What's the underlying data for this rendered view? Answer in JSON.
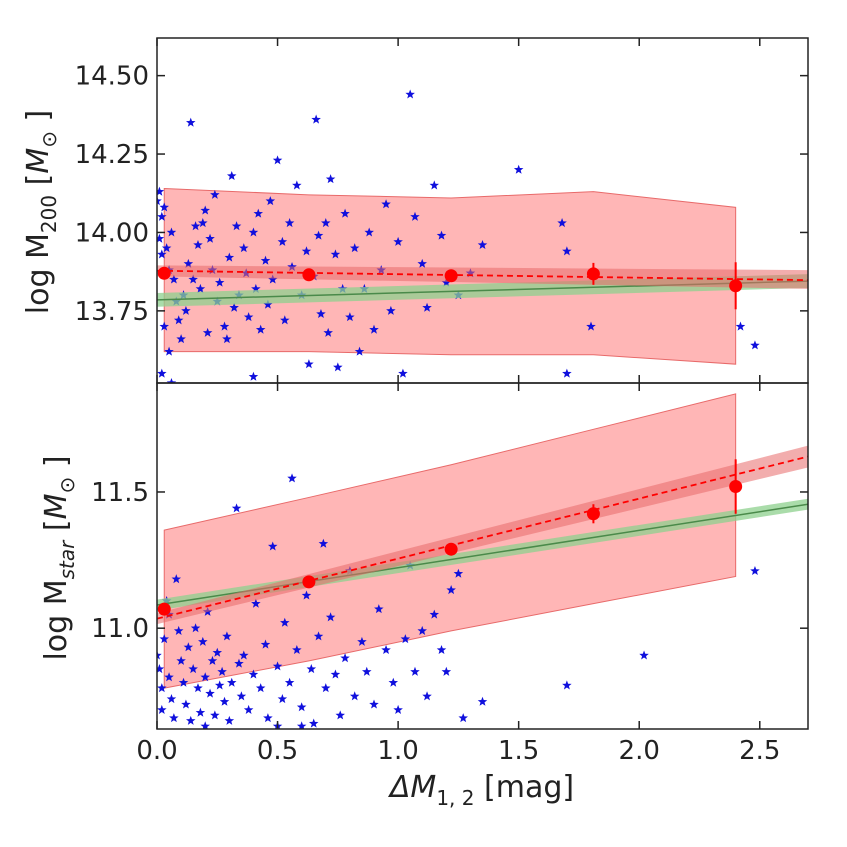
{
  "chart_data": [
    {
      "type": "scatter",
      "panel": "top",
      "ylabel": {
        "prefix": "log M",
        "sub": "200",
        "unit_open": " [",
        "unit_var": "M",
        "unit_sub": "⊙",
        "unit_close": " ]"
      },
      "xlim": [
        0.0,
        2.7
      ],
      "ylim": [
        13.52,
        14.62
      ],
      "xticks": [
        0.0,
        0.5,
        1.0,
        1.5,
        2.0,
        2.5
      ],
      "yticks": [
        13.75,
        14.0,
        14.25,
        14.5
      ],
      "ytick_labels": [
        "13.75",
        "14.00",
        "14.25",
        "14.50"
      ],
      "scatter_points": [
        [
          0.0,
          14.1
        ],
        [
          0.01,
          14.13
        ],
        [
          0.02,
          14.05
        ],
        [
          0.01,
          13.98
        ],
        [
          0.02,
          13.93
        ],
        [
          0.03,
          14.08
        ],
        [
          0.04,
          13.95
        ],
        [
          0.05,
          13.88
        ],
        [
          0.06,
          14.0
        ],
        [
          0.03,
          13.7
        ],
        [
          0.07,
          13.85
        ],
        [
          0.08,
          13.78
        ],
        [
          0.05,
          13.62
        ],
        [
          0.09,
          13.72
        ],
        [
          0.1,
          13.66
        ],
        [
          0.11,
          13.8
        ],
        [
          0.12,
          13.75
        ],
        [
          0.13,
          13.9
        ],
        [
          0.14,
          14.35
        ],
        [
          0.15,
          13.85
        ],
        [
          0.16,
          14.02
        ],
        [
          0.17,
          13.96
        ],
        [
          0.18,
          13.82
        ],
        [
          0.19,
          14.03
        ],
        [
          0.2,
          14.07
        ],
        [
          0.21,
          13.68
        ],
        [
          0.22,
          13.98
        ],
        [
          0.23,
          13.88
        ],
        [
          0.24,
          14.12
        ],
        [
          0.25,
          13.78
        ],
        [
          0.26,
          13.84
        ],
        [
          0.28,
          13.7
        ],
        [
          0.29,
          13.66
        ],
        [
          0.3,
          13.92
        ],
        [
          0.31,
          14.18
        ],
        [
          0.32,
          13.76
        ],
        [
          0.33,
          14.02
        ],
        [
          0.34,
          13.8
        ],
        [
          0.36,
          13.95
        ],
        [
          0.37,
          13.87
        ],
        [
          0.38,
          13.73
        ],
        [
          0.4,
          14.0
        ],
        [
          0.41,
          13.82
        ],
        [
          0.42,
          14.06
        ],
        [
          0.43,
          13.69
        ],
        [
          0.45,
          13.91
        ],
        [
          0.46,
          13.77
        ],
        [
          0.47,
          14.1
        ],
        [
          0.48,
          13.85
        ],
        [
          0.5,
          14.23
        ],
        [
          0.52,
          13.97
        ],
        [
          0.53,
          13.72
        ],
        [
          0.55,
          14.03
        ],
        [
          0.56,
          13.89
        ],
        [
          0.58,
          14.15
        ],
        [
          0.6,
          13.8
        ],
        [
          0.62,
          13.94
        ],
        [
          0.63,
          13.58
        ],
        [
          0.65,
          13.86
        ],
        [
          0.66,
          14.36
        ],
        [
          0.67,
          13.99
        ],
        [
          0.68,
          13.74
        ],
        [
          0.7,
          14.03
        ],
        [
          0.71,
          13.68
        ],
        [
          0.72,
          14.17
        ],
        [
          0.74,
          13.93
        ],
        [
          0.75,
          13.57
        ],
        [
          0.77,
          13.82
        ],
        [
          0.78,
          14.06
        ],
        [
          0.8,
          13.73
        ],
        [
          0.82,
          13.95
        ],
        [
          0.84,
          13.62
        ],
        [
          0.86,
          13.82
        ],
        [
          0.88,
          14.0
        ],
        [
          0.9,
          13.69
        ],
        [
          0.93,
          13.88
        ],
        [
          0.95,
          14.09
        ],
        [
          0.97,
          13.75
        ],
        [
          1.0,
          13.97
        ],
        [
          1.02,
          13.55
        ],
        [
          1.05,
          14.44
        ],
        [
          1.07,
          14.05
        ],
        [
          1.1,
          13.9
        ],
        [
          1.12,
          13.76
        ],
        [
          1.15,
          14.15
        ],
        [
          1.18,
          13.99
        ],
        [
          1.2,
          13.84
        ],
        [
          1.25,
          13.8
        ],
        [
          1.3,
          13.87
        ],
        [
          1.35,
          13.96
        ],
        [
          1.5,
          14.2
        ],
        [
          1.68,
          14.03
        ],
        [
          1.7,
          13.94
        ],
        [
          1.8,
          13.7
        ],
        [
          2.42,
          13.7
        ],
        [
          2.48,
          13.64
        ],
        [
          0.02,
          13.55
        ],
        [
          0.06,
          13.52
        ],
        [
          0.4,
          13.54
        ],
        [
          1.7,
          13.55
        ]
      ],
      "bins": {
        "x": [
          0.03,
          0.63,
          1.22,
          1.81,
          2.4
        ],
        "y": [
          13.87,
          13.865,
          13.862,
          13.868,
          13.83
        ],
        "yerr": [
          0.018,
          0.015,
          0.02,
          0.035,
          0.075
        ],
        "scatter_lo": [
          13.62,
          13.62,
          13.61,
          13.61,
          13.58
        ],
        "scatter_hi": [
          14.14,
          14.12,
          14.11,
          14.13,
          14.08
        ]
      },
      "fit": {
        "x0": 0.0,
        "y0": 13.878,
        "x1": 2.7,
        "y1": 13.848
      },
      "fit_band": {
        "lo0": 13.86,
        "hi0": 13.895,
        "lo1": 13.82,
        "hi1": 13.88
      },
      "reference": {
        "x0": 0.0,
        "y0": 13.785,
        "x1": 2.7,
        "y1": 13.845,
        "halfwidth": 0.022
      }
    },
    {
      "type": "scatter",
      "panel": "bottom",
      "ylabel": {
        "prefix": "log M",
        "sub": "star",
        "unit_open": " [",
        "unit_var": "M",
        "unit_sub": "⊙",
        "unit_close": " ]"
      },
      "xlabel": {
        "var": "ΔM",
        "sub": "1, 2",
        "unit": " [mag]"
      },
      "xlim": [
        0.0,
        2.7
      ],
      "ylim": [
        10.63,
        11.9
      ],
      "xticks": [
        0.0,
        0.5,
        1.0,
        1.5,
        2.0,
        2.5
      ],
      "xtick_labels": [
        "0.0",
        "0.5",
        "1.0",
        "1.5",
        "2.0",
        "2.5"
      ],
      "yticks": [
        11.0,
        11.5
      ],
      "ytick_labels": [
        "11.0",
        "11.5"
      ],
      "scatter_points": [
        [
          0.0,
          10.9
        ],
        [
          0.01,
          10.85
        ],
        [
          0.02,
          10.78
        ],
        [
          0.02,
          10.7
        ],
        [
          0.03,
          10.96
        ],
        [
          0.04,
          11.1
        ],
        [
          0.05,
          11.05
        ],
        [
          0.05,
          10.82
        ],
        [
          0.06,
          10.74
        ],
        [
          0.07,
          10.67
        ],
        [
          0.08,
          11.18
        ],
        [
          0.09,
          10.99
        ],
        [
          0.1,
          10.88
        ],
        [
          0.11,
          10.8
        ],
        [
          0.12,
          10.72
        ],
        [
          0.13,
          10.93
        ],
        [
          0.14,
          10.66
        ],
        [
          0.15,
          10.85
        ],
        [
          0.16,
          11.0
        ],
        [
          0.17,
          10.78
        ],
        [
          0.18,
          10.69
        ],
        [
          0.19,
          10.95
        ],
        [
          0.2,
          10.82
        ],
        [
          0.21,
          11.06
        ],
        [
          0.22,
          10.76
        ],
        [
          0.23,
          10.88
        ],
        [
          0.24,
          10.68
        ],
        [
          0.25,
          10.91
        ],
        [
          0.26,
          10.79
        ],
        [
          0.27,
          10.84
        ],
        [
          0.28,
          10.73
        ],
        [
          0.29,
          10.97
        ],
        [
          0.3,
          10.66
        ],
        [
          0.31,
          10.8
        ],
        [
          0.33,
          11.44
        ],
        [
          0.34,
          10.87
        ],
        [
          0.35,
          10.75
        ],
        [
          0.36,
          10.9
        ],
        [
          0.38,
          10.7
        ],
        [
          0.4,
          10.83
        ],
        [
          0.41,
          11.09
        ],
        [
          0.43,
          10.78
        ],
        [
          0.45,
          10.94
        ],
        [
          0.46,
          10.67
        ],
        [
          0.48,
          11.3
        ],
        [
          0.5,
          10.86
        ],
        [
          0.52,
          10.74
        ],
        [
          0.53,
          11.02
        ],
        [
          0.55,
          10.8
        ],
        [
          0.56,
          11.55
        ],
        [
          0.58,
          10.92
        ],
        [
          0.6,
          10.71
        ],
        [
          0.62,
          11.12
        ],
        [
          0.64,
          10.85
        ],
        [
          0.65,
          10.65
        ],
        [
          0.67,
          10.97
        ],
        [
          0.69,
          11.31
        ],
        [
          0.7,
          10.78
        ],
        [
          0.72,
          11.04
        ],
        [
          0.74,
          10.83
        ],
        [
          0.76,
          10.68
        ],
        [
          0.78,
          10.89
        ],
        [
          0.8,
          11.21
        ],
        [
          0.82,
          10.75
        ],
        [
          0.85,
          10.95
        ],
        [
          0.87,
          10.84
        ],
        [
          0.9,
          10.72
        ],
        [
          0.92,
          11.07
        ],
        [
          0.95,
          10.92
        ],
        [
          0.98,
          10.8
        ],
        [
          1.0,
          10.7
        ],
        [
          1.03,
          10.96
        ],
        [
          1.05,
          11.23
        ],
        [
          1.07,
          10.84
        ],
        [
          1.1,
          10.99
        ],
        [
          1.12,
          10.75
        ],
        [
          1.15,
          11.05
        ],
        [
          1.18,
          10.92
        ],
        [
          1.2,
          10.84
        ],
        [
          1.22,
          11.14
        ],
        [
          1.25,
          11.2
        ],
        [
          1.27,
          10.67
        ],
        [
          1.35,
          10.73
        ],
        [
          1.7,
          10.79
        ],
        [
          2.02,
          10.9
        ],
        [
          2.48,
          11.21
        ],
        [
          0.2,
          10.64
        ],
        [
          0.5,
          10.64
        ],
        [
          0.6,
          10.64
        ]
      ],
      "bins": {
        "x": [
          0.03,
          0.63,
          1.22,
          1.81,
          2.4
        ],
        "y": [
          11.07,
          11.17,
          11.29,
          11.42,
          11.52
        ],
        "yerr": [
          0.02,
          0.015,
          0.02,
          0.035,
          0.1
        ],
        "scatter_lo": [
          10.78,
          10.88,
          10.99,
          11.09,
          11.19
        ],
        "scatter_hi": [
          11.36,
          11.48,
          11.6,
          11.73,
          11.86
        ]
      },
      "fit": {
        "x0": 0.0,
        "y0": 11.035,
        "x1": 2.7,
        "y1": 11.63
      },
      "fit_band": {
        "lo0": 11.015,
        "hi0": 11.055,
        "lo1": 11.59,
        "hi1": 11.67
      },
      "reference": {
        "x0": 0.0,
        "y0": 11.085,
        "x1": 2.7,
        "y1": 11.455,
        "halfwidth": 0.02
      }
    }
  ],
  "colors": {
    "scatter": "#1010dd",
    "bins": "#ff0000",
    "band": "#ff9e9e",
    "fit_band": "#e86a6a",
    "reference": "#8ed08e",
    "reference_line": "#4a8a4a",
    "axis": "#222222"
  }
}
